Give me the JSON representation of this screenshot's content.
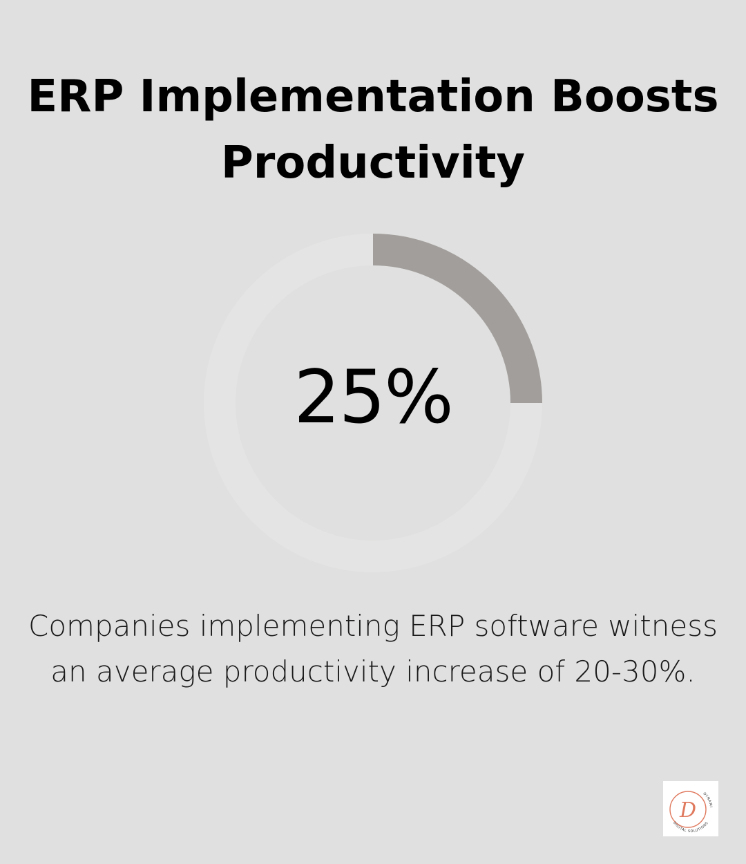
{
  "title_lines": [
    "ERP Implementation Boosts",
    "Productivity"
  ],
  "stat": {
    "display": "25%",
    "fraction": 0.25
  },
  "description": "Companies implementing ERP software witness an average productivity increase of 20-30%.",
  "logo": {
    "text_top": "DYNAMIC",
    "text_bottom": "DIGITAL SOLUTIONS",
    "mark": "D",
    "icon": "dynamic-digital-solutions-logo"
  },
  "colors": {
    "background": "#dfe0df",
    "track": "#e5e4e4",
    "arc": "#a29e9c",
    "text": "#000000",
    "logo_accent": "#e07a5f"
  }
}
